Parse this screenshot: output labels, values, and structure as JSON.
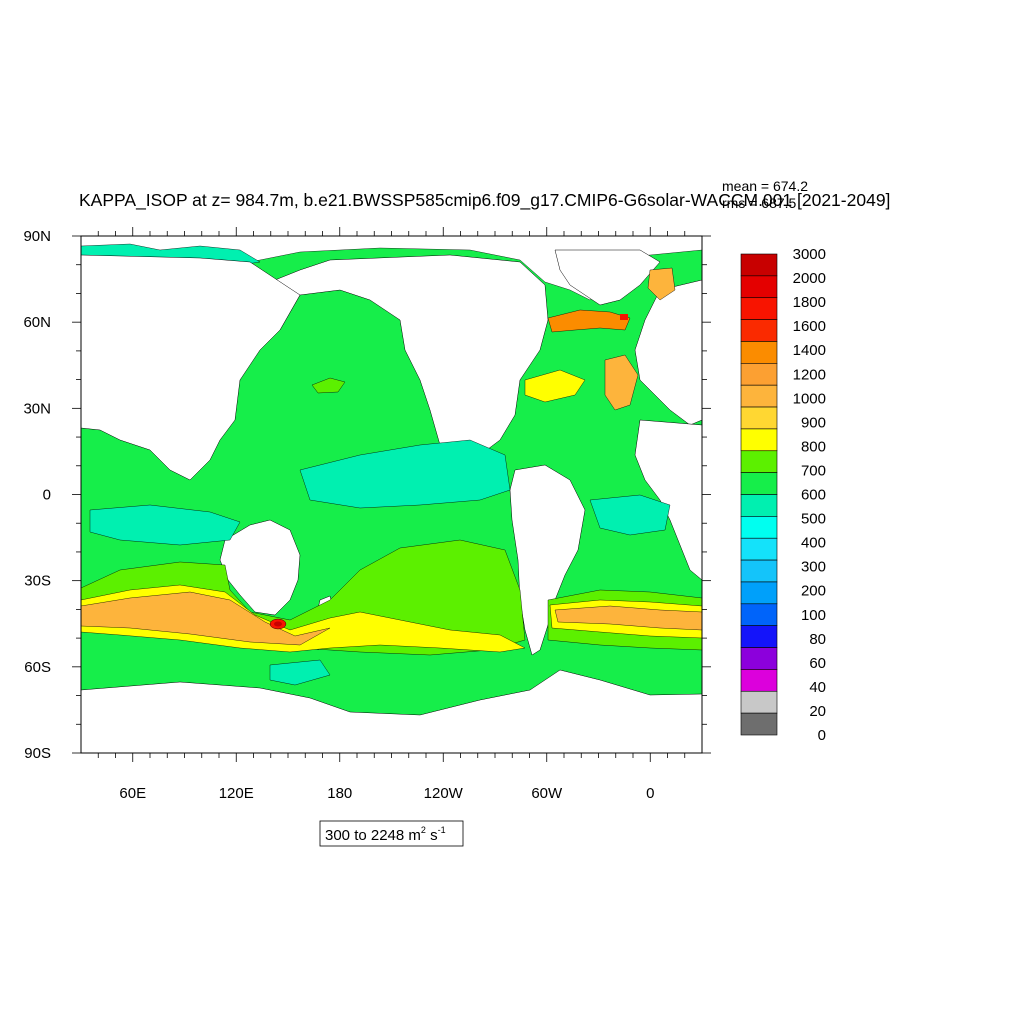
{
  "title": "KAPPA_ISOP at z= 984.7m, b.e21.BWSSP585cmip6.f09_g17.CMIP6-G6solar-WACCM.001 [2021-2049]",
  "stats": {
    "mean_label": "mean = 674.2",
    "rms_label": "rms = 687.5"
  },
  "range_label": {
    "prefix": "300 to 2248 m",
    "sup1": "2",
    "mid": " s",
    "sup2": "-1"
  },
  "chart_data": {
    "type": "heatmap",
    "projection": "cylindrical-equidistant",
    "lon_range": [
      30,
      390
    ],
    "lat_range": [
      -90,
      90
    ],
    "x_ticks": [
      {
        "lon": 60,
        "label": "60E"
      },
      {
        "lon": 120,
        "label": "120E"
      },
      {
        "lon": 180,
        "label": "180"
      },
      {
        "lon": 240,
        "label": "120W"
      },
      {
        "lon": 300,
        "label": "60W"
      },
      {
        "lon": 360,
        "label": "0"
      }
    ],
    "y_ticks": [
      {
        "lat": 90,
        "label": "90N"
      },
      {
        "lat": 60,
        "label": "60N"
      },
      {
        "lat": 30,
        "label": "30N"
      },
      {
        "lat": 0,
        "label": "0"
      },
      {
        "lat": -30,
        "label": "30S"
      },
      {
        "lat": -60,
        "label": "60S"
      },
      {
        "lat": -90,
        "label": "90S"
      }
    ],
    "colorbar": {
      "labels": [
        "3000",
        "2000",
        "1800",
        "1600",
        "1400",
        "1200",
        "1000",
        "900",
        "800",
        "700",
        "600",
        "500",
        "400",
        "300",
        "200",
        "100",
        "80",
        "60",
        "40",
        "20",
        "0"
      ],
      "colors": [
        "#c80000",
        "#e40000",
        "#f81400",
        "#fa2a00",
        "#fb8c00",
        "#fca032",
        "#fdb43c",
        "#ffd732",
        "#ffff00",
        "#5cf000",
        "#16ee4a",
        "#00f0b0",
        "#00fff0",
        "#14e2fa",
        "#14c4fa",
        "#00a0fa",
        "#0064fa",
        "#1414fa",
        "#8c00dc",
        "#dc00dc",
        "#c8c8c8",
        "#6e6e6e"
      ]
    },
    "land_color": "#ffffff"
  }
}
